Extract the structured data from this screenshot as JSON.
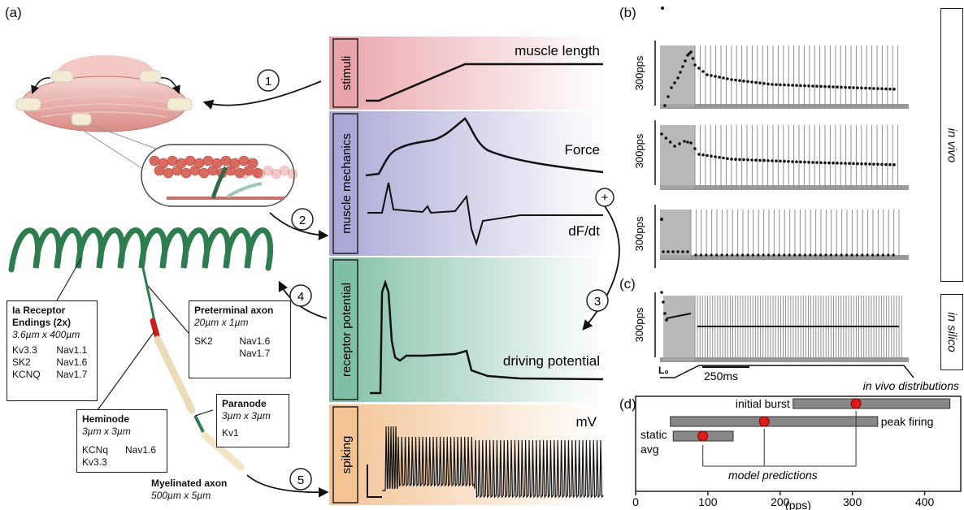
{
  "panels": {
    "a": "(a)",
    "b": "(b)",
    "c": "(c)",
    "d": "(d)"
  },
  "steps": [
    "1",
    "2",
    "3",
    "4",
    "5"
  ],
  "plus": "+",
  "rows": [
    {
      "label": "stimuli",
      "trace_label": "muscle length",
      "color": "#e9a4aa"
    },
    {
      "label": "muscle mechanics",
      "trace_label": "Force",
      "trace_label2": "dF/dt",
      "color": "#a9a8d6"
    },
    {
      "label": "receptor potential",
      "trace_label": "driving potential",
      "color": "#7fbfa4"
    },
    {
      "label": "spiking",
      "trace_label": "mV",
      "color": "#f3c394"
    }
  ],
  "boxes": {
    "ia": {
      "title": "Ia Receptor Endings (2x)",
      "size": "3.6µm x 400µm",
      "channels": [
        "Kv3.3",
        "Nav1.1",
        "SK2",
        "Nav1.6",
        "KCNQ",
        "Nav1.7"
      ]
    },
    "preterminal": {
      "title": "Preterminal axon",
      "size": "20µm x 1µm",
      "channels": [
        "SK2",
        "Nav1.6",
        "",
        "Nav1.7"
      ]
    },
    "heminode": {
      "title": "Heminode",
      "size": "3µm x 3µm",
      "channels": [
        "KCNq",
        "Nav1.6",
        "Kv3.3",
        ""
      ]
    },
    "paranode": {
      "title": "Paranode",
      "size": "3µm x 3µm",
      "channels": [
        "Kv1"
      ]
    },
    "myelinated": {
      "title": "Myelinated axon",
      "size": "500µm x 5µm"
    }
  },
  "right": {
    "invivo": "in vivo",
    "insilico": "in silico",
    "scale": "300pps",
    "l0": "L₀",
    "timescale": "250ms"
  },
  "chart_data": {
    "type": "scatter",
    "title": "in vivo distributions",
    "xlabel": "(pps)",
    "xlim": [
      0,
      450
    ],
    "xticks": [
      0,
      100,
      200,
      300,
      400
    ],
    "ranges": [
      {
        "name": "initial burst",
        "min": 218,
        "max": 435,
        "prediction": 305
      },
      {
        "name": "peak firing",
        "min": 48,
        "max": 335,
        "prediction": 178
      },
      {
        "name": "static avg",
        "min": 52,
        "max": 135,
        "prediction": 93
      }
    ],
    "annotation": "model predictions"
  }
}
